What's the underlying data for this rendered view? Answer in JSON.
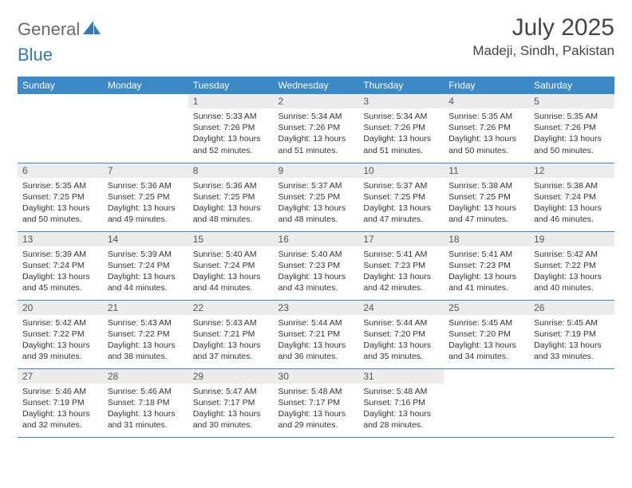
{
  "logo": {
    "part1": "General",
    "part2": "Blue"
  },
  "title": "July 2025",
  "location": "Madeji, Sindh, Pakistan",
  "colors": {
    "header_bg": "#3b89c7",
    "header_text": "#ffffff",
    "daynum_bg": "#ececec",
    "border": "#3b89c7",
    "logo_gray": "#6a6a6a",
    "logo_blue": "#2f7bbf"
  },
  "weekdays": [
    "Sunday",
    "Monday",
    "Tuesday",
    "Wednesday",
    "Thursday",
    "Friday",
    "Saturday"
  ],
  "weeks": [
    [
      null,
      null,
      {
        "n": "1",
        "sr": "5:33 AM",
        "ss": "7:26 PM",
        "dl": "13 hours and 52 minutes."
      },
      {
        "n": "2",
        "sr": "5:34 AM",
        "ss": "7:26 PM",
        "dl": "13 hours and 51 minutes."
      },
      {
        "n": "3",
        "sr": "5:34 AM",
        "ss": "7:26 PM",
        "dl": "13 hours and 51 minutes."
      },
      {
        "n": "4",
        "sr": "5:35 AM",
        "ss": "7:26 PM",
        "dl": "13 hours and 50 minutes."
      },
      {
        "n": "5",
        "sr": "5:35 AM",
        "ss": "7:26 PM",
        "dl": "13 hours and 50 minutes."
      }
    ],
    [
      {
        "n": "6",
        "sr": "5:35 AM",
        "ss": "7:25 PM",
        "dl": "13 hours and 50 minutes."
      },
      {
        "n": "7",
        "sr": "5:36 AM",
        "ss": "7:25 PM",
        "dl": "13 hours and 49 minutes."
      },
      {
        "n": "8",
        "sr": "5:36 AM",
        "ss": "7:25 PM",
        "dl": "13 hours and 48 minutes."
      },
      {
        "n": "9",
        "sr": "5:37 AM",
        "ss": "7:25 PM",
        "dl": "13 hours and 48 minutes."
      },
      {
        "n": "10",
        "sr": "5:37 AM",
        "ss": "7:25 PM",
        "dl": "13 hours and 47 minutes."
      },
      {
        "n": "11",
        "sr": "5:38 AM",
        "ss": "7:25 PM",
        "dl": "13 hours and 47 minutes."
      },
      {
        "n": "12",
        "sr": "5:38 AM",
        "ss": "7:24 PM",
        "dl": "13 hours and 46 minutes."
      }
    ],
    [
      {
        "n": "13",
        "sr": "5:39 AM",
        "ss": "7:24 PM",
        "dl": "13 hours and 45 minutes."
      },
      {
        "n": "14",
        "sr": "5:39 AM",
        "ss": "7:24 PM",
        "dl": "13 hours and 44 minutes."
      },
      {
        "n": "15",
        "sr": "5:40 AM",
        "ss": "7:24 PM",
        "dl": "13 hours and 44 minutes."
      },
      {
        "n": "16",
        "sr": "5:40 AM",
        "ss": "7:23 PM",
        "dl": "13 hours and 43 minutes."
      },
      {
        "n": "17",
        "sr": "5:41 AM",
        "ss": "7:23 PM",
        "dl": "13 hours and 42 minutes."
      },
      {
        "n": "18",
        "sr": "5:41 AM",
        "ss": "7:23 PM",
        "dl": "13 hours and 41 minutes."
      },
      {
        "n": "19",
        "sr": "5:42 AM",
        "ss": "7:22 PM",
        "dl": "13 hours and 40 minutes."
      }
    ],
    [
      {
        "n": "20",
        "sr": "5:42 AM",
        "ss": "7:22 PM",
        "dl": "13 hours and 39 minutes."
      },
      {
        "n": "21",
        "sr": "5:43 AM",
        "ss": "7:22 PM",
        "dl": "13 hours and 38 minutes."
      },
      {
        "n": "22",
        "sr": "5:43 AM",
        "ss": "7:21 PM",
        "dl": "13 hours and 37 minutes."
      },
      {
        "n": "23",
        "sr": "5:44 AM",
        "ss": "7:21 PM",
        "dl": "13 hours and 36 minutes."
      },
      {
        "n": "24",
        "sr": "5:44 AM",
        "ss": "7:20 PM",
        "dl": "13 hours and 35 minutes."
      },
      {
        "n": "25",
        "sr": "5:45 AM",
        "ss": "7:20 PM",
        "dl": "13 hours and 34 minutes."
      },
      {
        "n": "26",
        "sr": "5:45 AM",
        "ss": "7:19 PM",
        "dl": "13 hours and 33 minutes."
      }
    ],
    [
      {
        "n": "27",
        "sr": "5:46 AM",
        "ss": "7:19 PM",
        "dl": "13 hours and 32 minutes."
      },
      {
        "n": "28",
        "sr": "5:46 AM",
        "ss": "7:18 PM",
        "dl": "13 hours and 31 minutes."
      },
      {
        "n": "29",
        "sr": "5:47 AM",
        "ss": "7:17 PM",
        "dl": "13 hours and 30 minutes."
      },
      {
        "n": "30",
        "sr": "5:48 AM",
        "ss": "7:17 PM",
        "dl": "13 hours and 29 minutes."
      },
      {
        "n": "31",
        "sr": "5:48 AM",
        "ss": "7:16 PM",
        "dl": "13 hours and 28 minutes."
      },
      null,
      null
    ]
  ],
  "labels": {
    "sunrise": "Sunrise:",
    "sunset": "Sunset:",
    "daylight": "Daylight:"
  }
}
